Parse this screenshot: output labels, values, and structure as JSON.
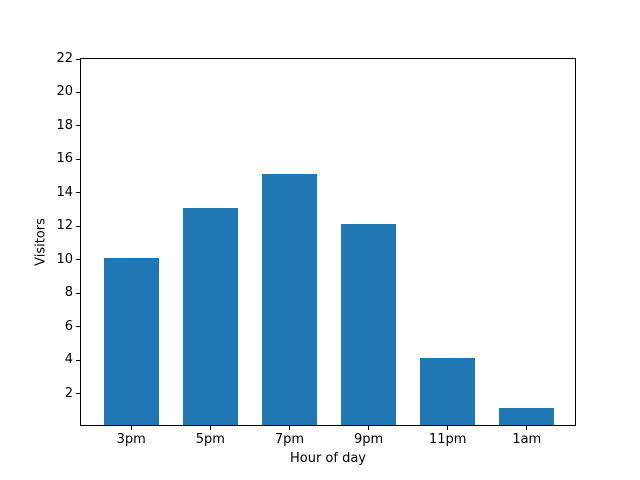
{
  "chart_data": {
    "type": "bar",
    "title": "",
    "xlabel": "Hour of day",
    "ylabel": "Visitors",
    "categories": [
      "3pm",
      "5pm",
      "7pm",
      "9pm",
      "11pm",
      "1am"
    ],
    "values": [
      10,
      13,
      15,
      12,
      4,
      1
    ],
    "bar_color": "#1f77b4",
    "ylim": [
      0,
      22
    ],
    "yticks": [
      2,
      4,
      6,
      8,
      10,
      12,
      14,
      16,
      18,
      20,
      22
    ],
    "xlim": [
      -0.635,
      5.635
    ],
    "bar_width": 0.7,
    "grid": false,
    "legend": null,
    "background_color": "#ffffff",
    "spine_color": "#000000"
  }
}
